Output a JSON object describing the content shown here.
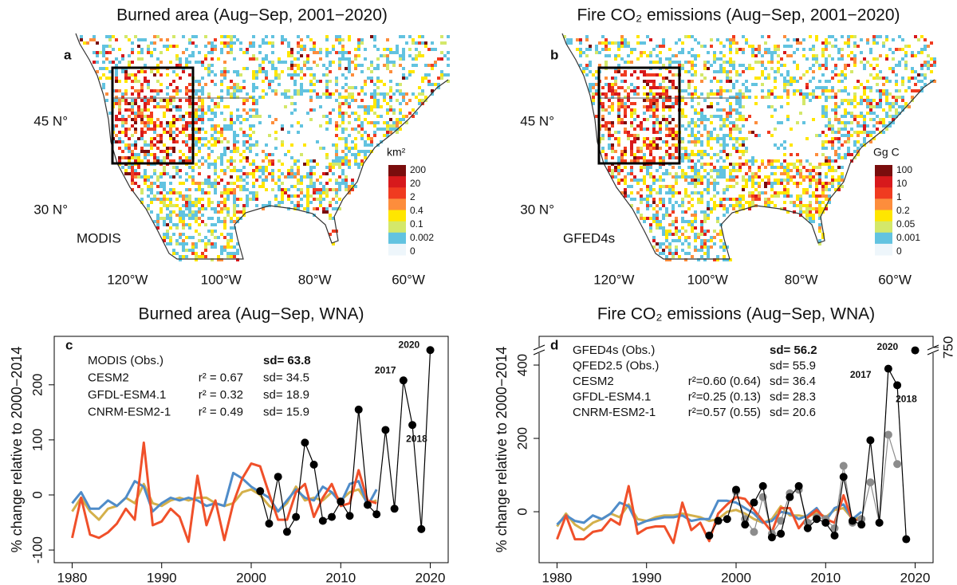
{
  "chart_data": [
    {
      "type": "map",
      "title": "Burned area (Aug−Sep, 2001−2020)",
      "panel_label": "a",
      "source_label": "MODIS",
      "xlim": [
        -135.3,
        -51.5
      ],
      "ylim": [
        21.8,
        60
      ],
      "xticks": [
        {
          "value": -120,
          "label": "120°W"
        },
        {
          "value": -100,
          "label": "100°W"
        },
        {
          "value": -80,
          "label": "80°W"
        },
        {
          "value": -60,
          "label": "60°W"
        }
      ],
      "yticks": [
        {
          "value": 45,
          "label": "45 N°"
        },
        {
          "value": 30,
          "label": "30 N°"
        }
      ],
      "colorbar": {
        "title": "km²",
        "ticks": [
          200,
          20,
          2,
          0.4,
          0.1,
          0.002,
          0
        ],
        "colors": [
          "#7a0d0d",
          "#d7191c",
          "#f03b20",
          "#fd8d3c",
          "#ffe600",
          "#d4e86a",
          "#62c3e0",
          "#eef6fb"
        ]
      }
    },
    {
      "type": "map",
      "title": "Fire CO₂ emissions (Aug−Sep, 2001−2020)",
      "panel_label": "b",
      "source_label": "GFED4s",
      "xlim": [
        -135.3,
        -51.5
      ],
      "ylim": [
        21.8,
        60
      ],
      "xticks": [
        {
          "value": -120,
          "label": "120°W"
        },
        {
          "value": -100,
          "label": "100°W"
        },
        {
          "value": -80,
          "label": "80°W"
        },
        {
          "value": -60,
          "label": "60°W"
        }
      ],
      "yticks": [
        {
          "value": 45,
          "label": "45 N°"
        },
        {
          "value": 30,
          "label": "30 N°"
        }
      ],
      "colorbar": {
        "title": "Gg C",
        "ticks": [
          100,
          10,
          1,
          0.2,
          0.05,
          0.001,
          0
        ],
        "colors": [
          "#7a0d0d",
          "#d7191c",
          "#f03b20",
          "#fd8d3c",
          "#ffe600",
          "#d4e86a",
          "#62c3e0",
          "#eef6fb"
        ]
      }
    },
    {
      "type": "line",
      "title": "Burned area (Aug−Sep, WNA)",
      "panel_label": "c",
      "ylabel": "% change relative to 2000−2014",
      "x": [
        1980,
        1981,
        1982,
        1983,
        1984,
        1985,
        1986,
        1987,
        1988,
        1989,
        1990,
        1991,
        1992,
        1993,
        1994,
        1995,
        1996,
        1997,
        1998,
        1999,
        2000,
        2001,
        2002,
        2003,
        2004,
        2005,
        2006,
        2007,
        2008,
        2009,
        2010,
        2011,
        2012,
        2013,
        2014,
        2015,
        2016,
        2017,
        2018,
        2019,
        2020
      ],
      "xlim": [
        1978,
        2022
      ],
      "xticks": [
        1980,
        1990,
        2000,
        2010,
        2020
      ],
      "ylim": [
        -123,
        288
      ],
      "yticks": [
        -100,
        0,
        100,
        200
      ],
      "series": [
        {
          "name": "MODIS (Obs.)",
          "color": "#000000",
          "style": "points",
          "sd_label": "sd= 63.8",
          "values": [
            null,
            null,
            null,
            null,
            null,
            null,
            null,
            null,
            null,
            null,
            null,
            null,
            null,
            null,
            null,
            null,
            null,
            null,
            null,
            null,
            null,
            7,
            -52,
            33,
            -67,
            -40,
            95,
            55,
            -47,
            -40,
            -12,
            -38,
            155,
            -18,
            -35,
            118,
            -25,
            208,
            127,
            -62,
            263
          ]
        },
        {
          "name": "CESM2",
          "color": "#f0502a",
          "style": "line",
          "r2_label": "r² = 0.67",
          "sd_label": "sd= 34.5",
          "values": [
            -78,
            -5,
            -72,
            -78,
            -68,
            -52,
            -25,
            -45,
            95,
            -55,
            -48,
            -25,
            -40,
            -85,
            35,
            -55,
            -10,
            -82,
            -15,
            30,
            57,
            52,
            2,
            -45,
            -45,
            5,
            20,
            -40,
            -5,
            20,
            -20,
            -15,
            45,
            -10,
            -15,
            null,
            null,
            null,
            null,
            null,
            null
          ]
        },
        {
          "name": "GFDL-ESM4.1",
          "color": "#4f8cc9",
          "style": "line",
          "r2_label": "r² = 0.32",
          "sd_label": "sd= 18.9",
          "values": [
            -15,
            5,
            -25,
            -25,
            -10,
            -20,
            -5,
            25,
            15,
            -30,
            -15,
            -5,
            -10,
            -5,
            -10,
            -20,
            -15,
            -20,
            40,
            30,
            15,
            5,
            -5,
            -30,
            -10,
            10,
            -5,
            -10,
            15,
            5,
            -15,
            20,
            25,
            -20,
            10,
            null,
            null,
            null,
            null,
            null,
            null
          ]
        },
        {
          "name": "CNRM-ESM2-1",
          "color": "#d4b04a",
          "style": "line",
          "r2_label": "r² = 0.49",
          "sd_label": "sd= 15.9",
          "values": [
            -30,
            -5,
            -30,
            -45,
            -25,
            -20,
            -5,
            -15,
            20,
            -15,
            -20,
            -10,
            -5,
            -10,
            -5,
            -5,
            -15,
            -20,
            -15,
            5,
            10,
            0,
            -20,
            -30,
            -15,
            15,
            -10,
            -5,
            -10,
            5,
            -10,
            5,
            10,
            -15,
            -10,
            null,
            null,
            null,
            null,
            null,
            null
          ]
        }
      ],
      "annotations": [
        {
          "text": "2020",
          "x": 2020
        },
        {
          "text": "2017",
          "x": 2017
        },
        {
          "text": "2018",
          "x": 2018
        }
      ]
    },
    {
      "type": "line",
      "title": "Fire CO₂ emissions (Aug−Sep, WNA)",
      "panel_label": "d",
      "ylabel": "% change relative to 2000−2014",
      "x": [
        1980,
        1981,
        1982,
        1983,
        1984,
        1985,
        1986,
        1987,
        1988,
        1989,
        1990,
        1991,
        1992,
        1993,
        1994,
        1995,
        1996,
        1997,
        1998,
        1999,
        2000,
        2001,
        2002,
        2003,
        2004,
        2005,
        2006,
        2007,
        2008,
        2009,
        2010,
        2011,
        2012,
        2013,
        2014,
        2015,
        2016,
        2017,
        2018,
        2019,
        2020
      ],
      "xlim": [
        1978,
        2022
      ],
      "xticks": [
        1980,
        1990,
        2000,
        2010,
        2020
      ],
      "ylim": [
        -139,
        424
      ],
      "yticks": [
        0,
        200,
        400
      ],
      "ylim_upper": [
        726,
        780
      ],
      "yticks_upper": [
        750
      ],
      "series": [
        {
          "name": "GFED4s (Obs.)",
          "color": "#000000",
          "style": "points",
          "sd_label": "sd= 56.2",
          "values": [
            null,
            null,
            null,
            null,
            null,
            null,
            null,
            null,
            null,
            null,
            null,
            null,
            null,
            null,
            null,
            null,
            null,
            -65,
            -25,
            -20,
            60,
            -35,
            25,
            70,
            -70,
            -60,
            40,
            70,
            -45,
            -20,
            -30,
            -65,
            95,
            -25,
            -35,
            195,
            -30,
            390,
            345,
            -75,
            742
          ]
        },
        {
          "name": "QFED2.5 (Obs.)",
          "color": "#8c8c8c",
          "style": "points",
          "sd_label": "sd= 55.9",
          "values": [
            null,
            null,
            null,
            null,
            null,
            null,
            null,
            null,
            null,
            null,
            null,
            null,
            null,
            null,
            null,
            null,
            null,
            null,
            null,
            null,
            55,
            -20,
            -55,
            40,
            -60,
            -25,
            50,
            60,
            -30,
            -15,
            -20,
            -45,
            125,
            -30,
            -20,
            80,
            -30,
            210,
            130,
            null,
            null
          ]
        },
        {
          "name": "CESM2",
          "color": "#f0502a",
          "style": "line",
          "r2_label": "r²=0.60 (0.64)",
          "sd_label": "sd= 36.4",
          "values": [
            -75,
            -10,
            -75,
            -75,
            -55,
            -50,
            -20,
            -35,
            70,
            -60,
            -45,
            -40,
            -40,
            -85,
            25,
            -50,
            -30,
            -80,
            -5,
            20,
            40,
            35,
            5,
            -25,
            -55,
            10,
            10,
            -45,
            -15,
            5,
            -20,
            -30,
            45,
            -25,
            -20,
            null,
            null,
            null,
            null,
            null,
            null
          ]
        },
        {
          "name": "GFDL-ESM4.1",
          "color": "#4f8cc9",
          "style": "line",
          "r2_label": "r²=0.25 (0.13)",
          "sd_label": "sd= 28.3",
          "values": [
            -35,
            -10,
            -25,
            -30,
            -10,
            -20,
            -5,
            25,
            15,
            -35,
            -25,
            -20,
            -15,
            -15,
            -10,
            -25,
            -20,
            -20,
            30,
            30,
            25,
            10,
            -5,
            -30,
            -25,
            0,
            -5,
            -20,
            -10,
            10,
            -25,
            10,
            20,
            -20,
            0,
            null,
            null,
            null,
            null,
            null,
            null
          ]
        },
        {
          "name": "CNRM-ESM2-1",
          "color": "#d4b04a",
          "style": "line",
          "r2_label": "r²=0.57 (0.55)",
          "sd_label": "sd= 20.6",
          "values": [
            -40,
            -5,
            -35,
            -50,
            -30,
            -20,
            -5,
            -15,
            20,
            -20,
            -25,
            -15,
            -10,
            -10,
            -5,
            -10,
            -15,
            -25,
            -20,
            0,
            5,
            -5,
            -20,
            -30,
            -20,
            15,
            -10,
            -10,
            -15,
            0,
            -15,
            5,
            10,
            -20,
            -15,
            null,
            null,
            null,
            null,
            null,
            null
          ]
        }
      ],
      "annotations": [
        {
          "text": "2020",
          "x": 2020
        },
        {
          "text": "2017",
          "x": 2017
        },
        {
          "text": "2018",
          "x": 2018
        }
      ]
    }
  ]
}
